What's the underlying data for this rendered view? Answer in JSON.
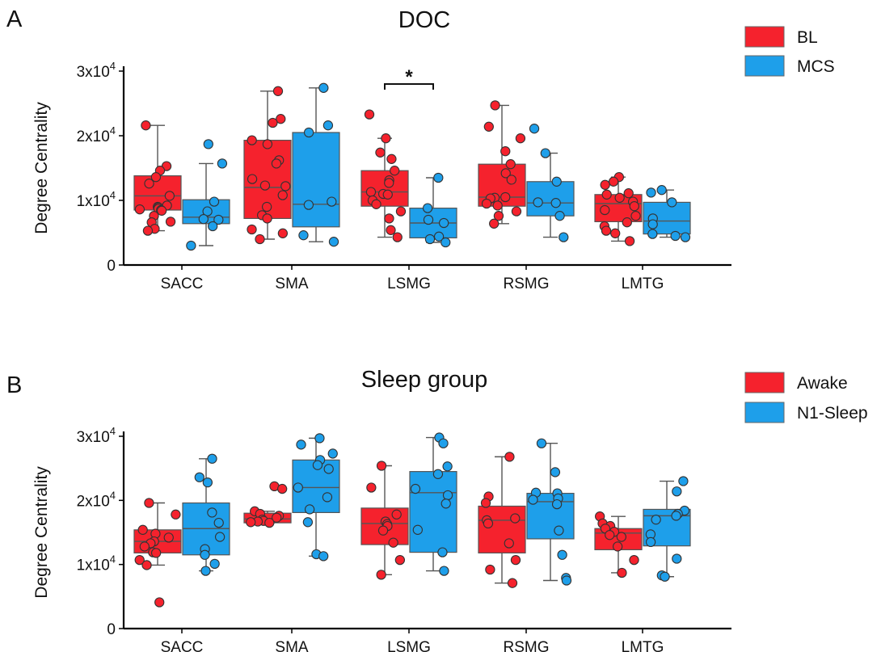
{
  "colors": {
    "red": "#F5222D",
    "blue": "#1E9FEA",
    "box_edge": "#555555"
  },
  "chart_data": [
    {
      "type": "box",
      "panel_letter": "A",
      "title": "DOC",
      "ylabel": "Degree Centrality",
      "ylim": [
        0,
        30000
      ],
      "yticks": [
        0,
        10000,
        20000,
        30000
      ],
      "ytick_labels": [
        {
          "base": "0",
          "exp": ""
        },
        {
          "base": "1x10",
          "exp": "4"
        },
        {
          "base": "2x10",
          "exp": "4"
        },
        {
          "base": "3x10",
          "exp": "4"
        }
      ],
      "categories": [
        "SACC",
        "SMA",
        "LSMG",
        "RSMG",
        "LMTG"
      ],
      "legend": [
        "BL",
        "MCS"
      ],
      "legend_position": "top-right",
      "significance": [
        {
          "category": "LSMG",
          "label": "*"
        }
      ],
      "series": [
        {
          "name": "BL",
          "color": "#F5222D",
          "groups": [
            {
              "category": "SACC",
              "q1": 8500,
              "median": 10700,
              "q3": 13800,
              "whisker_low": 5300,
              "whisker_high": 21600,
              "points": [
                21600,
                15300,
                14600,
                13600,
                12600,
                10700,
                9200,
                9000,
                8900,
                8700,
                8600,
                8500,
                8400,
                7600,
                6700,
                6600,
                5600,
                5300
              ]
            },
            {
              "category": "SMA",
              "q1": 7200,
              "median": 12000,
              "q3": 19300,
              "whisker_low": 4000,
              "whisker_high": 26900,
              "points": [
                26900,
                22600,
                22000,
                19300,
                18700,
                16200,
                15700,
                13300,
                12300,
                12200,
                10800,
                9000,
                7700,
                7200,
                5500,
                4900,
                4000
              ]
            },
            {
              "category": "LSMG",
              "q1": 9100,
              "median": 11300,
              "q3": 14600,
              "whisker_low": 4300,
              "whisker_high": 19600,
              "points": [
                23300,
                19600,
                17400,
                16400,
                14600,
                13100,
                12700,
                11300,
                11000,
                10900,
                10000,
                9400,
                8300,
                7200,
                5400,
                4300
              ]
            },
            {
              "category": "RSMG",
              "q1": 9100,
              "median": 10500,
              "q3": 15600,
              "whisker_low": 6400,
              "whisker_high": 24700,
              "points": [
                24700,
                21400,
                19600,
                17600,
                15600,
                14200,
                13200,
                10500,
                10400,
                10300,
                9500,
                9200,
                8300,
                7600,
                6400
              ]
            },
            {
              "category": "LMTG",
              "q1": 6700,
              "median": 9500,
              "q3": 10900,
              "whisker_low": 3700,
              "whisker_high": 13600,
              "points": [
                13600,
                12900,
                12400,
                11100,
                10900,
                10400,
                9800,
                9100,
                8500,
                7600,
                6600,
                6000,
                5300,
                4900,
                3700
              ]
            }
          ]
        },
        {
          "name": "MCS",
          "color": "#1E9FEA",
          "groups": [
            {
              "category": "SACC",
              "q1": 6400,
              "median": 7400,
              "q3": 10100,
              "whisker_low": 3000,
              "whisker_high": 15700,
              "points": [
                18700,
                15700,
                9800,
                8300,
                7100,
                7000,
                6000,
                3000
              ]
            },
            {
              "category": "SMA",
              "q1": 5900,
              "median": 9400,
              "q3": 20500,
              "whisker_low": 3600,
              "whisker_high": 27400,
              "points": [
                27400,
                21600,
                20500,
                9800,
                9300,
                4600,
                3600
              ]
            },
            {
              "category": "LSMG",
              "q1": 4200,
              "median": 6500,
              "q3": 8800,
              "whisker_low": 3500,
              "whisker_high": 13500,
              "points": [
                13500,
                8800,
                7000,
                6500,
                4400,
                4000,
                3500
              ]
            },
            {
              "category": "RSMG",
              "q1": 7600,
              "median": 9600,
              "q3": 12900,
              "whisker_low": 4300,
              "whisker_high": 17300,
              "points": [
                21100,
                17300,
                12900,
                9700,
                9600,
                7600,
                4300
              ]
            },
            {
              "category": "LMTG",
              "q1": 4800,
              "median": 6800,
              "q3": 9700,
              "whisker_low": 4300,
              "whisker_high": 11600,
              "points": [
                11600,
                11200,
                9700,
                7200,
                6300,
                4800,
                4500,
                4300
              ]
            }
          ]
        }
      ]
    },
    {
      "type": "box",
      "panel_letter": "B",
      "title": "Sleep group",
      "ylabel": "Degree Centrality",
      "ylim": [
        0,
        30000
      ],
      "yticks": [
        0,
        10000,
        20000,
        30000
      ],
      "ytick_labels": [
        {
          "base": "0",
          "exp": ""
        },
        {
          "base": "1x10",
          "exp": "4"
        },
        {
          "base": "2x10",
          "exp": "4"
        },
        {
          "base": "3x10",
          "exp": "4"
        }
      ],
      "categories": [
        "SACC",
        "SMA",
        "LSMG",
        "RSMG",
        "LMTG"
      ],
      "legend": [
        "Awake",
        "N1-Sleep"
      ],
      "legend_position": "top-right",
      "series": [
        {
          "name": "Awake",
          "color": "#F5222D",
          "groups": [
            {
              "category": "SACC",
              "q1": 11800,
              "median": 13600,
              "q3": 15400,
              "whisker_low": 9900,
              "whisker_high": 19600,
              "points": [
                19600,
                17800,
                15400,
                14800,
                14200,
                13600,
                13300,
                12800,
                11900,
                11800,
                10700,
                9900,
                4100
              ]
            },
            {
              "category": "SMA",
              "q1": 16500,
              "median": 17100,
              "q3": 18000,
              "whisker_low": 16500,
              "whisker_high": 18300,
              "points": [
                22200,
                21800,
                18300,
                17900,
                17600,
                17300,
                17000,
                16800,
                16700,
                16600,
                16500
              ]
            },
            {
              "category": "LSMG",
              "q1": 13100,
              "median": 16400,
              "q3": 18800,
              "whisker_low": 8400,
              "whisker_high": 25400,
              "points": [
                25400,
                22000,
                17800,
                16700,
                16300,
                16000,
                15300,
                13400,
                10700,
                8400
              ]
            },
            {
              "category": "RSMG",
              "q1": 11800,
              "median": 16900,
              "q3": 19100,
              "whisker_low": 7100,
              "whisker_high": 26800,
              "points": [
                26800,
                20600,
                19600,
                17200,
                16900,
                16400,
                13300,
                10700,
                9200,
                7100
              ]
            },
            {
              "category": "LMTG",
              "q1": 12300,
              "median": 14900,
              "q3": 15600,
              "whisker_low": 8700,
              "whisker_high": 17500,
              "points": [
                17500,
                16400,
                16000,
                15600,
                15100,
                14600,
                14300,
                12800,
                10700,
                8700
              ]
            }
          ]
        },
        {
          "name": "N1-Sleep",
          "color": "#1E9FEA",
          "groups": [
            {
              "category": "SACC",
              "q1": 11500,
              "median": 15600,
              "q3": 19600,
              "whisker_low": 9000,
              "whisker_high": 26500,
              "points": [
                26500,
                23600,
                22800,
                18100,
                16500,
                14300,
                12400,
                11500,
                10100,
                9000
              ]
            },
            {
              "category": "SMA",
              "q1": 18100,
              "median": 22000,
              "q3": 26300,
              "whisker_low": 11300,
              "whisker_high": 29700,
              "points": [
                29700,
                28700,
                27300,
                26300,
                25500,
                24900,
                22000,
                20500,
                18600,
                16600,
                11600,
                11300
              ]
            },
            {
              "category": "LSMG",
              "q1": 11900,
              "median": 21200,
              "q3": 24500,
              "whisker_low": 9000,
              "whisker_high": 29800,
              "points": [
                29800,
                28900,
                25300,
                24100,
                21800,
                20800,
                19500,
                15400,
                11900,
                9000
              ]
            },
            {
              "category": "RSMG",
              "q1": 14000,
              "median": 19800,
              "q3": 21100,
              "whisker_low": 7500,
              "whisker_high": 28900,
              "points": [
                28900,
                24400,
                21200,
                21100,
                20300,
                20100,
                19400,
                15300,
                11500,
                7900,
                7500
              ]
            },
            {
              "category": "LMTG",
              "q1": 12900,
              "median": 17600,
              "q3": 18600,
              "whisker_low": 8100,
              "whisker_high": 23000,
              "points": [
                23000,
                21400,
                18400,
                17900,
                17600,
                17000,
                14700,
                13500,
                10900,
                8300,
                8100
              ]
            }
          ]
        }
      ]
    }
  ]
}
